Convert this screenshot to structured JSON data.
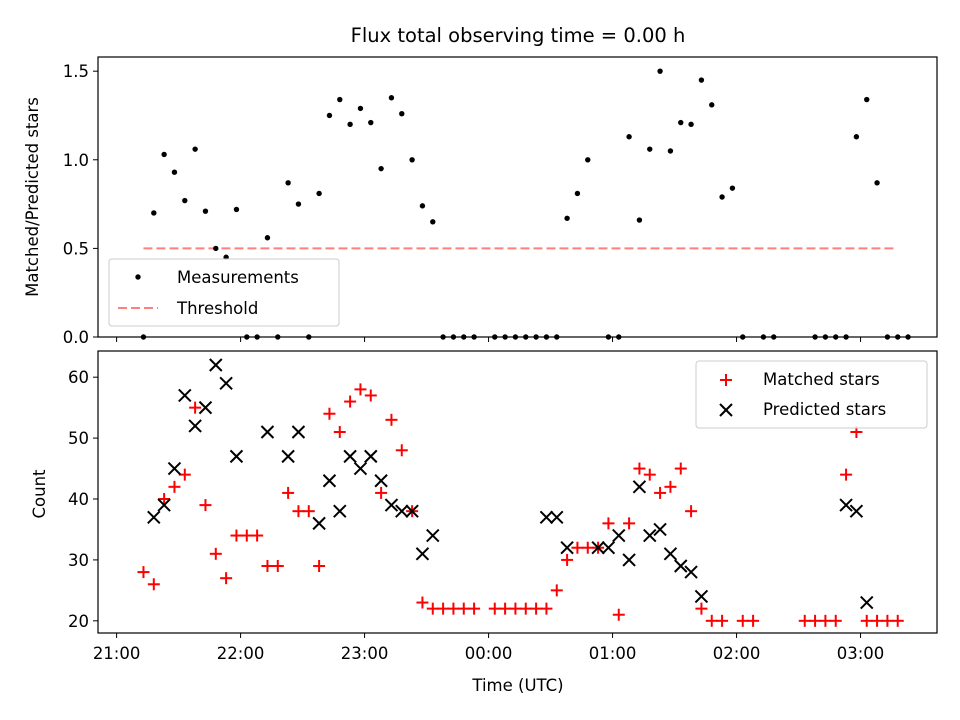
{
  "chart_data": [
    {
      "type": "scatter",
      "title": "Flux total observing time = 0.00 h",
      "xlabel": "",
      "ylabel": "Matched/Predicted stars",
      "ylim": [
        0,
        1.58
      ],
      "yticks": [
        0.0,
        0.5,
        1.0,
        1.5
      ],
      "ytick_labels": [
        "0.0",
        "0.5",
        "1.0",
        "1.5"
      ],
      "xlim": [
        "2024-01-01T20:51",
        "2024-01-02T03:37"
      ],
      "xticks": [
        "21:00",
        "22:00",
        "23:00",
        "00:00",
        "01:00",
        "02:00",
        "03:00"
      ],
      "show_xtick_labels": false,
      "legend": {
        "placement": "lower-left",
        "entries": [
          {
            "label": "Measurements",
            "marker": "dot",
            "color": "#000000"
          },
          {
            "label": "Threshold",
            "marker": "dashed-line",
            "color": "#ff7f7f"
          }
        ]
      },
      "threshold": {
        "name": "Threshold",
        "y": 0.5,
        "x_start": "21:13",
        "x_end": "03:17",
        "color": "#ff7f7f"
      },
      "series": [
        {
          "name": "Measurements",
          "color": "#000000",
          "points": [
            [
              "21:13",
              0.0
            ],
            [
              "21:18",
              0.7
            ],
            [
              "21:23",
              1.03
            ],
            [
              "21:28",
              0.93
            ],
            [
              "21:33",
              0.77
            ],
            [
              "21:38",
              1.06
            ],
            [
              "21:43",
              0.71
            ],
            [
              "21:48",
              0.5
            ],
            [
              "21:53",
              0.45
            ],
            [
              "21:58",
              0.72
            ],
            [
              "22:03",
              0.0
            ],
            [
              "22:08",
              0.0
            ],
            [
              "22:13",
              0.56
            ],
            [
              "22:18",
              0.0
            ],
            [
              "22:23",
              0.87
            ],
            [
              "22:28",
              0.75
            ],
            [
              "22:33",
              0.0
            ],
            [
              "22:38",
              0.81
            ],
            [
              "22:43",
              1.25
            ],
            [
              "22:48",
              1.34
            ],
            [
              "22:53",
              1.2
            ],
            [
              "22:58",
              1.29
            ],
            [
              "23:03",
              1.21
            ],
            [
              "23:08",
              0.95
            ],
            [
              "23:13",
              1.35
            ],
            [
              "23:18",
              1.26
            ],
            [
              "23:23",
              1.0
            ],
            [
              "23:28",
              0.74
            ],
            [
              "23:33",
              0.65
            ],
            [
              "23:38",
              0.0
            ],
            [
              "23:43",
              0.0
            ],
            [
              "23:48",
              0.0
            ],
            [
              "23:53",
              0.0
            ],
            [
              "00:03",
              0.0
            ],
            [
              "00:08",
              0.0
            ],
            [
              "00:13",
              0.0
            ],
            [
              "00:18",
              0.0
            ],
            [
              "00:23",
              0.0
            ],
            [
              "00:28",
              0.0
            ],
            [
              "00:33",
              0.0
            ],
            [
              "00:38",
              0.67
            ],
            [
              "00:43",
              0.81
            ],
            [
              "00:48",
              1.0
            ],
            [
              "00:58",
              0.0
            ],
            [
              "01:03",
              0.0
            ],
            [
              "01:08",
              1.13
            ],
            [
              "01:13",
              0.66
            ],
            [
              "01:18",
              1.06
            ],
            [
              "01:23",
              1.5
            ],
            [
              "01:28",
              1.05
            ],
            [
              "01:33",
              1.21
            ],
            [
              "01:38",
              1.2
            ],
            [
              "01:43",
              1.45
            ],
            [
              "01:48",
              1.31
            ],
            [
              "01:53",
              0.79
            ],
            [
              "01:58",
              0.84
            ],
            [
              "02:03",
              0.0
            ],
            [
              "02:13",
              0.0
            ],
            [
              "02:18",
              0.0
            ],
            [
              "02:38",
              0.0
            ],
            [
              "02:43",
              0.0
            ],
            [
              "02:48",
              0.0
            ],
            [
              "02:53",
              0.0
            ],
            [
              "02:58",
              1.13
            ],
            [
              "03:03",
              1.34
            ],
            [
              "03:08",
              0.87
            ],
            [
              "03:13",
              0.0
            ],
            [
              "03:18",
              0.0
            ],
            [
              "03:23",
              0.0
            ]
          ]
        }
      ]
    },
    {
      "type": "scatter",
      "title": "",
      "xlabel": "Time (UTC)",
      "ylabel": "Count",
      "ylim": [
        18,
        64.3
      ],
      "yticks": [
        20,
        30,
        40,
        50,
        60
      ],
      "ytick_labels": [
        "20",
        "30",
        "40",
        "50",
        "60"
      ],
      "xlim": [
        "2024-01-01T20:51",
        "2024-01-02T03:37"
      ],
      "xticks": [
        "21:00",
        "22:00",
        "23:00",
        "00:00",
        "01:00",
        "02:00",
        "03:00"
      ],
      "xtick_labels": [
        "21:00",
        "22:00",
        "23:00",
        "00:00",
        "01:00",
        "02:00",
        "03:00"
      ],
      "show_xtick_labels": true,
      "legend": {
        "placement": "upper-right",
        "entries": [
          {
            "label": "Matched stars",
            "marker": "plus",
            "color": "#ff0000"
          },
          {
            "label": "Predicted stars",
            "marker": "x",
            "color": "#000000"
          }
        ]
      },
      "series": [
        {
          "name": "Matched stars",
          "marker": "plus",
          "color": "#ff0000",
          "points": [
            [
              "21:13",
              28
            ],
            [
              "21:18",
              26
            ],
            [
              "21:23",
              40
            ],
            [
              "21:28",
              42
            ],
            [
              "21:33",
              44
            ],
            [
              "21:38",
              55
            ],
            [
              "21:43",
              39
            ],
            [
              "21:48",
              31
            ],
            [
              "21:53",
              27
            ],
            [
              "21:58",
              34
            ],
            [
              "22:03",
              34
            ],
            [
              "22:08",
              34
            ],
            [
              "22:13",
              29
            ],
            [
              "22:18",
              29
            ],
            [
              "22:23",
              41
            ],
            [
              "22:28",
              38
            ],
            [
              "22:33",
              38
            ],
            [
              "22:38",
              29
            ],
            [
              "22:43",
              54
            ],
            [
              "22:48",
              51
            ],
            [
              "22:53",
              56
            ],
            [
              "22:58",
              58
            ],
            [
              "23:03",
              57
            ],
            [
              "23:08",
              41
            ],
            [
              "23:13",
              53
            ],
            [
              "23:18",
              48
            ],
            [
              "23:23",
              38
            ],
            [
              "23:28",
              23
            ],
            [
              "23:33",
              22
            ],
            [
              "23:38",
              22
            ],
            [
              "23:43",
              22
            ],
            [
              "23:48",
              22
            ],
            [
              "23:53",
              22
            ],
            [
              "00:03",
              22
            ],
            [
              "00:08",
              22
            ],
            [
              "00:13",
              22
            ],
            [
              "00:18",
              22
            ],
            [
              "00:23",
              22
            ],
            [
              "00:28",
              22
            ],
            [
              "00:33",
              25
            ],
            [
              "00:38",
              30
            ],
            [
              "00:43",
              32
            ],
            [
              "00:48",
              32
            ],
            [
              "00:53",
              32
            ],
            [
              "00:58",
              36
            ],
            [
              "01:03",
              21
            ],
            [
              "01:08",
              36
            ],
            [
              "01:13",
              45
            ],
            [
              "01:18",
              44
            ],
            [
              "01:23",
              41
            ],
            [
              "01:28",
              42
            ],
            [
              "01:33",
              45
            ],
            [
              "01:38",
              38
            ],
            [
              "01:43",
              22
            ],
            [
              "01:48",
              20
            ],
            [
              "01:53",
              20
            ],
            [
              "02:03",
              20
            ],
            [
              "02:08",
              20
            ],
            [
              "02:33",
              20
            ],
            [
              "02:38",
              20
            ],
            [
              "02:43",
              20
            ],
            [
              "02:48",
              20
            ],
            [
              "02:53",
              44
            ],
            [
              "02:58",
              51
            ],
            [
              "03:03",
              20
            ],
            [
              "03:08",
              20
            ],
            [
              "03:13",
              20
            ],
            [
              "03:18",
              20
            ]
          ]
        },
        {
          "name": "Predicted stars",
          "marker": "x",
          "color": "#000000",
          "points": [
            [
              "21:18",
              37
            ],
            [
              "21:23",
              39
            ],
            [
              "21:28",
              45
            ],
            [
              "21:33",
              57
            ],
            [
              "21:38",
              52
            ],
            [
              "21:43",
              55
            ],
            [
              "21:48",
              62
            ],
            [
              "21:53",
              59
            ],
            [
              "21:58",
              47
            ],
            [
              "22:13",
              51
            ],
            [
              "22:23",
              47
            ],
            [
              "22:28",
              51
            ],
            [
              "22:38",
              36
            ],
            [
              "22:43",
              43
            ],
            [
              "22:48",
              38
            ],
            [
              "22:53",
              47
            ],
            [
              "22:58",
              45
            ],
            [
              "23:03",
              47
            ],
            [
              "23:08",
              43
            ],
            [
              "23:13",
              39
            ],
            [
              "23:18",
              38
            ],
            [
              "23:23",
              38
            ],
            [
              "23:28",
              31
            ],
            [
              "23:33",
              34
            ],
            [
              "00:28",
              37
            ],
            [
              "00:33",
              37
            ],
            [
              "00:38",
              32
            ],
            [
              "00:53",
              32
            ],
            [
              "00:58",
              32
            ],
            [
              "01:03",
              34
            ],
            [
              "01:08",
              30
            ],
            [
              "01:13",
              42
            ],
            [
              "01:18",
              34
            ],
            [
              "01:23",
              35
            ],
            [
              "01:28",
              31
            ],
            [
              "01:33",
              29
            ],
            [
              "01:38",
              28
            ],
            [
              "01:43",
              24
            ],
            [
              "02:53",
              39
            ],
            [
              "02:58",
              38
            ],
            [
              "03:03",
              23
            ]
          ]
        }
      ]
    }
  ]
}
